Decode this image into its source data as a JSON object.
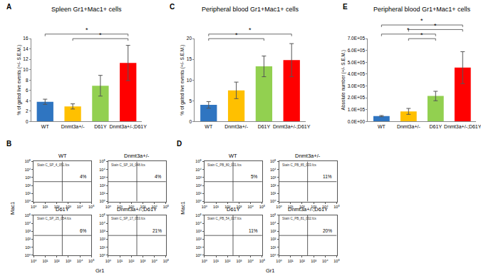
{
  "chart_data": [
    {
      "type": "bar",
      "panel": "A",
      "title": "Spleen Gr1+Mac1+ cells",
      "y_label": "% of gated live events (+/- S.E.M.)",
      "categories": [
        "WT",
        "Dnmt3a+/-",
        "D61Y",
        "Dnmt3a+/-;D61Y"
      ],
      "values": [
        3.8,
        2.9,
        6.9,
        11.3
      ],
      "errors": [
        0.5,
        0.5,
        2.0,
        3.4
      ],
      "colors": [
        "#2f75c1",
        "#ffc000",
        "#92d050",
        "#ff0000"
      ],
      "ylim": [
        0,
        16
      ],
      "yticks": [
        0,
        2,
        4,
        6,
        8,
        10,
        12,
        14,
        16
      ],
      "significance": [
        {
          "from": "Dnmt3a+/-",
          "to": "Dnmt3a+/-;D61Y",
          "label": "*"
        },
        {
          "from": "WT",
          "to": "Dnmt3a+/-;D61Y",
          "label": "*"
        }
      ]
    },
    {
      "type": "bar",
      "panel": "C",
      "title": "Peripheral blood Gr1+Mac1+ cells",
      "y_label": "% of gated live events (+/- S.E.M.)",
      "categories": [
        "WT",
        "Dnmt3a+/-",
        "D61Y",
        "Dnmt3a+/-;D61Y"
      ],
      "values": [
        4.0,
        7.5,
        13.3,
        14.8
      ],
      "errors": [
        0.8,
        2.0,
        2.5,
        4.0
      ],
      "colors": [
        "#2f75c1",
        "#ffc000",
        "#92d050",
        "#ff0000"
      ],
      "ylim": [
        0,
        20
      ],
      "yticks": [
        0,
        5,
        10,
        15,
        20
      ],
      "significance": [
        {
          "from": "WT",
          "to": "D61Y",
          "label": "*"
        },
        {
          "from": "WT",
          "to": "Dnmt3a+/-;D61Y",
          "label": "*"
        }
      ]
    },
    {
      "type": "bar",
      "panel": "E",
      "title": "Peripheral blood Gr1+Mac1+ cells",
      "y_label": "Absolute number (+/- S.E.M.)",
      "categories": [
        "WT",
        "Dnmt3a+/-",
        "D61Y",
        "Dnmt3a+/-;D61Y"
      ],
      "values": [
        45000,
        85000,
        215000,
        455000
      ],
      "errors": [
        5000,
        25000,
        40000,
        135000
      ],
      "colors": [
        "#2f75c1",
        "#ffc000",
        "#92d050",
        "#ff0000"
      ],
      "ylim": [
        0,
        700000
      ],
      "yticks": [
        {
          "value": 0,
          "label": "0.0E+00"
        },
        {
          "value": 100000,
          "label": "1.0E+05"
        },
        {
          "value": 200000,
          "label": "2.0E+05"
        },
        {
          "value": 300000,
          "label": "3.0E+05"
        },
        {
          "value": 400000,
          "label": "4.0E+05"
        },
        {
          "value": 500000,
          "label": "5.0E+05"
        },
        {
          "value": 600000,
          "label": "6.0E+05"
        },
        {
          "value": 700000,
          "label": "7.0E+05"
        }
      ],
      "significance": [
        {
          "from": "Dnmt3a+/-",
          "to": "D61Y",
          "label": "*"
        },
        {
          "from": "WT",
          "to": "D61Y",
          "label": "*"
        },
        {
          "from": "Dnmt3a+/-",
          "to": "Dnmt3a+/-;D61Y",
          "label": "*"
        },
        {
          "from": "WT",
          "to": "Dnmt3a+/-;D61Y",
          "label": "*"
        }
      ]
    },
    {
      "type": "scatter",
      "panel": "B",
      "x_label": "Gr1",
      "y_label": "Mac1",
      "log": true,
      "xlim": [
        1,
        100000
      ],
      "ylim": [
        1,
        100000
      ],
      "xticks": [
        {
          "value": 1,
          "label": "10⁰"
        },
        {
          "value": 10,
          "label": "10¹"
        },
        {
          "value": 100,
          "label": "10²"
        },
        {
          "value": 1000,
          "label": "10³"
        },
        {
          "value": 10000,
          "label": "10⁴"
        },
        {
          "value": 100000,
          "label": "10⁵"
        }
      ],
      "yticks": [
        {
          "value": 1,
          "label": "10⁰"
        },
        {
          "value": 10,
          "label": "10¹"
        },
        {
          "value": 100,
          "label": "10²"
        },
        {
          "value": 1000,
          "label": "10³"
        },
        {
          "value": 10000,
          "label": "10⁴"
        },
        {
          "value": 100000,
          "label": "10⁵"
        }
      ],
      "plots": [
        {
          "title": "WT",
          "file": "Stain C_SP_4_051.fcs",
          "gate": [
            300,
            300
          ],
          "value": 4,
          "value_label": "4%"
        },
        {
          "title": "Dnmt3a+/-",
          "file": "Stain C_SP_16_048.fcs",
          "gate": [
            300,
            300
          ],
          "value": 4,
          "value_label": "4%"
        },
        {
          "title": "D61Y",
          "file": "Stain C_SP_25_054.fcs",
          "gate": [
            300,
            300
          ],
          "value": 6,
          "value_label": "6%"
        },
        {
          "title": "Dnmt3a+/-;D61Y",
          "file": "Stain C_SP_17_053.fcs",
          "gate": [
            300,
            300
          ],
          "value": 21,
          "value_label": "21%"
        }
      ]
    },
    {
      "type": "scatter",
      "panel": "D",
      "x_label": "Gr1",
      "y_label": "Mac1",
      "log": true,
      "xlim": [
        1,
        100000
      ],
      "ylim": [
        1,
        100000
      ],
      "xticks": [
        {
          "value": 1,
          "label": "10⁰"
        },
        {
          "value": 10,
          "label": "10¹"
        },
        {
          "value": 100,
          "label": "10²"
        },
        {
          "value": 1000,
          "label": "10³"
        },
        {
          "value": 10000,
          "label": "10⁴"
        },
        {
          "value": 100000,
          "label": "10⁵"
        }
      ],
      "yticks": [
        {
          "value": 1,
          "label": "10⁰"
        },
        {
          "value": 10,
          "label": "10¹"
        },
        {
          "value": 100,
          "label": "10²"
        },
        {
          "value": 1000,
          "label": "10³"
        },
        {
          "value": 10000,
          "label": "10⁴"
        },
        {
          "value": 100000,
          "label": "10⁵"
        }
      ],
      "plots": [
        {
          "title": "WT",
          "file": "Stain C_PB_80_031.fcs",
          "gate": [
            300,
            300
          ],
          "value": 5,
          "value_label": "5%"
        },
        {
          "title": "Dnmt3a+/-",
          "file": "Stain C_PB_85_033.fcs",
          "gate": [
            300,
            300
          ],
          "value": 11,
          "value_label": "11%"
        },
        {
          "title": "D61Y",
          "file": "Stain C_PB_54_027.fcs",
          "gate": [
            300,
            300
          ],
          "value": 11,
          "value_label": "11%"
        },
        {
          "title": "Dnmt3a+/-;D61Y",
          "file": "Stain C_PB_81_032.fcs",
          "gate": [
            300,
            300
          ],
          "value": 20,
          "value_label": "20%"
        }
      ]
    }
  ]
}
